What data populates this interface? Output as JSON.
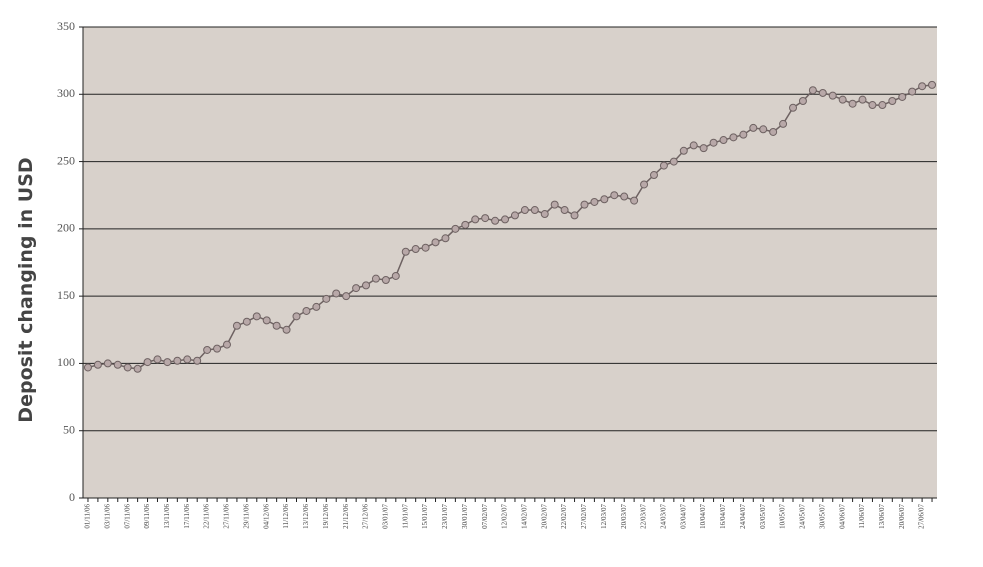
{
  "chart_data": {
    "type": "line",
    "ylabel": "Deposit changing in USD",
    "categories": [
      "01/11/06",
      null,
      "03/11/06",
      null,
      "07/11/06",
      null,
      "09/11/06",
      null,
      "13/11/06",
      null,
      "17/11/06",
      null,
      "22/11/06",
      null,
      "27/11/06",
      null,
      "29/11/06",
      null,
      "04/12/06",
      null,
      "11/12/06",
      null,
      "13/12/06",
      null,
      "19/12/06",
      null,
      "21/12/06",
      null,
      "27/12/06",
      null,
      "03/01/07",
      null,
      "11/01/07",
      null,
      "15/01/07",
      null,
      "23/01/07",
      null,
      "30/01/07",
      null,
      "07/02/07",
      null,
      "12/02/07",
      null,
      "14/02/07",
      null,
      "20/02/07",
      null,
      "22/02/07",
      null,
      "27/02/07",
      null,
      "12/03/07",
      null,
      "20/03/07",
      null,
      "22/03/07",
      null,
      "24/03/07",
      null,
      "03/04/07",
      null,
      "10/04/07",
      null,
      "16/04/07",
      null,
      "24/04/07",
      null,
      "03/05/07",
      null,
      "10/05/07",
      null,
      "24/05/07",
      null,
      "30/05/07",
      null,
      "04/06/07",
      null,
      "11/06/07",
      null,
      "13/06/07",
      null,
      "20/06/07",
      null,
      "27/06/07",
      null
    ],
    "values": [
      97,
      99,
      100,
      99,
      97,
      96,
      101,
      103,
      101,
      102,
      103,
      102,
      110,
      111,
      114,
      128,
      131,
      135,
      132,
      128,
      125,
      135,
      139,
      142,
      148,
      152,
      150,
      156,
      158,
      163,
      162,
      165,
      183,
      185,
      186,
      190,
      193,
      200,
      203,
      207,
      208,
      206,
      207,
      210,
      214,
      214,
      211,
      218,
      214,
      210,
      218,
      220,
      222,
      225,
      224,
      221,
      233,
      240,
      247,
      250,
      258,
      262,
      260,
      264,
      266,
      268,
      270,
      275,
      274,
      272,
      278,
      290,
      295,
      303,
      301,
      299,
      296,
      293,
      296,
      292,
      292,
      295,
      298,
      302,
      306,
      307
    ],
    "color": "#6e6262",
    "ylim": [
      0,
      350
    ],
    "yticks": [
      0,
      50,
      100,
      150,
      200,
      250,
      300,
      350
    ],
    "grid": true
  }
}
